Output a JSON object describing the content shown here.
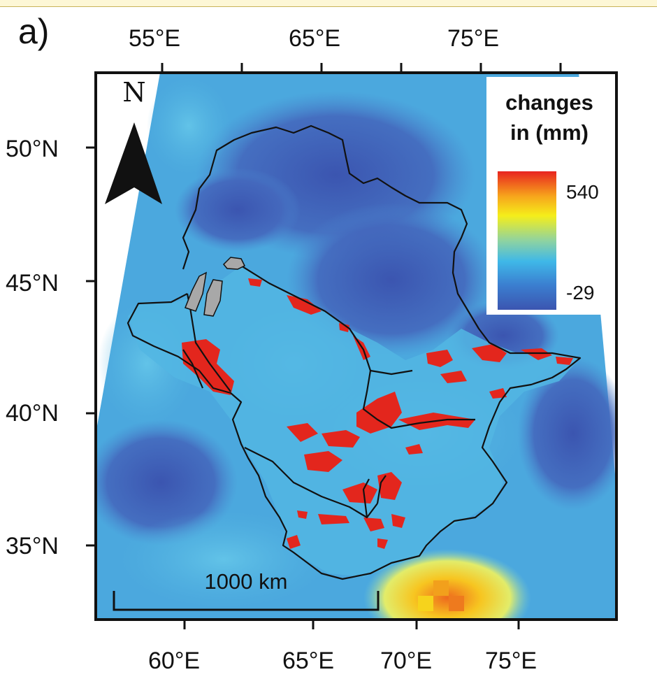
{
  "panel_label": "a)",
  "top_axis_ticks": [
    "55°E",
    "65°E",
    "75°E"
  ],
  "bottom_axis_ticks": [
    "60°E",
    "65°E",
    "70°E",
    "75°E"
  ],
  "left_axis_ticks": [
    "50°N",
    "45°N",
    "40°N",
    "35°N"
  ],
  "legend": {
    "title_line1": "changes",
    "title_line2": "in (mm)",
    "max": "540",
    "min": "-29",
    "gradient_colors": [
      "#e8241f",
      "#f7a51c",
      "#f5ee1a",
      "#8fd3a0",
      "#3fb8e8",
      "#3b7fd0",
      "#3b55b0"
    ]
  },
  "north_arrow_label": "N",
  "scale_bar_label": "1000 km",
  "colors": {
    "background_field": "#49a6dd",
    "low_change": "#3a5cb3",
    "high_change": "#e3261d",
    "basin_outline": "#111111",
    "lake": "#a9a9a9"
  }
}
